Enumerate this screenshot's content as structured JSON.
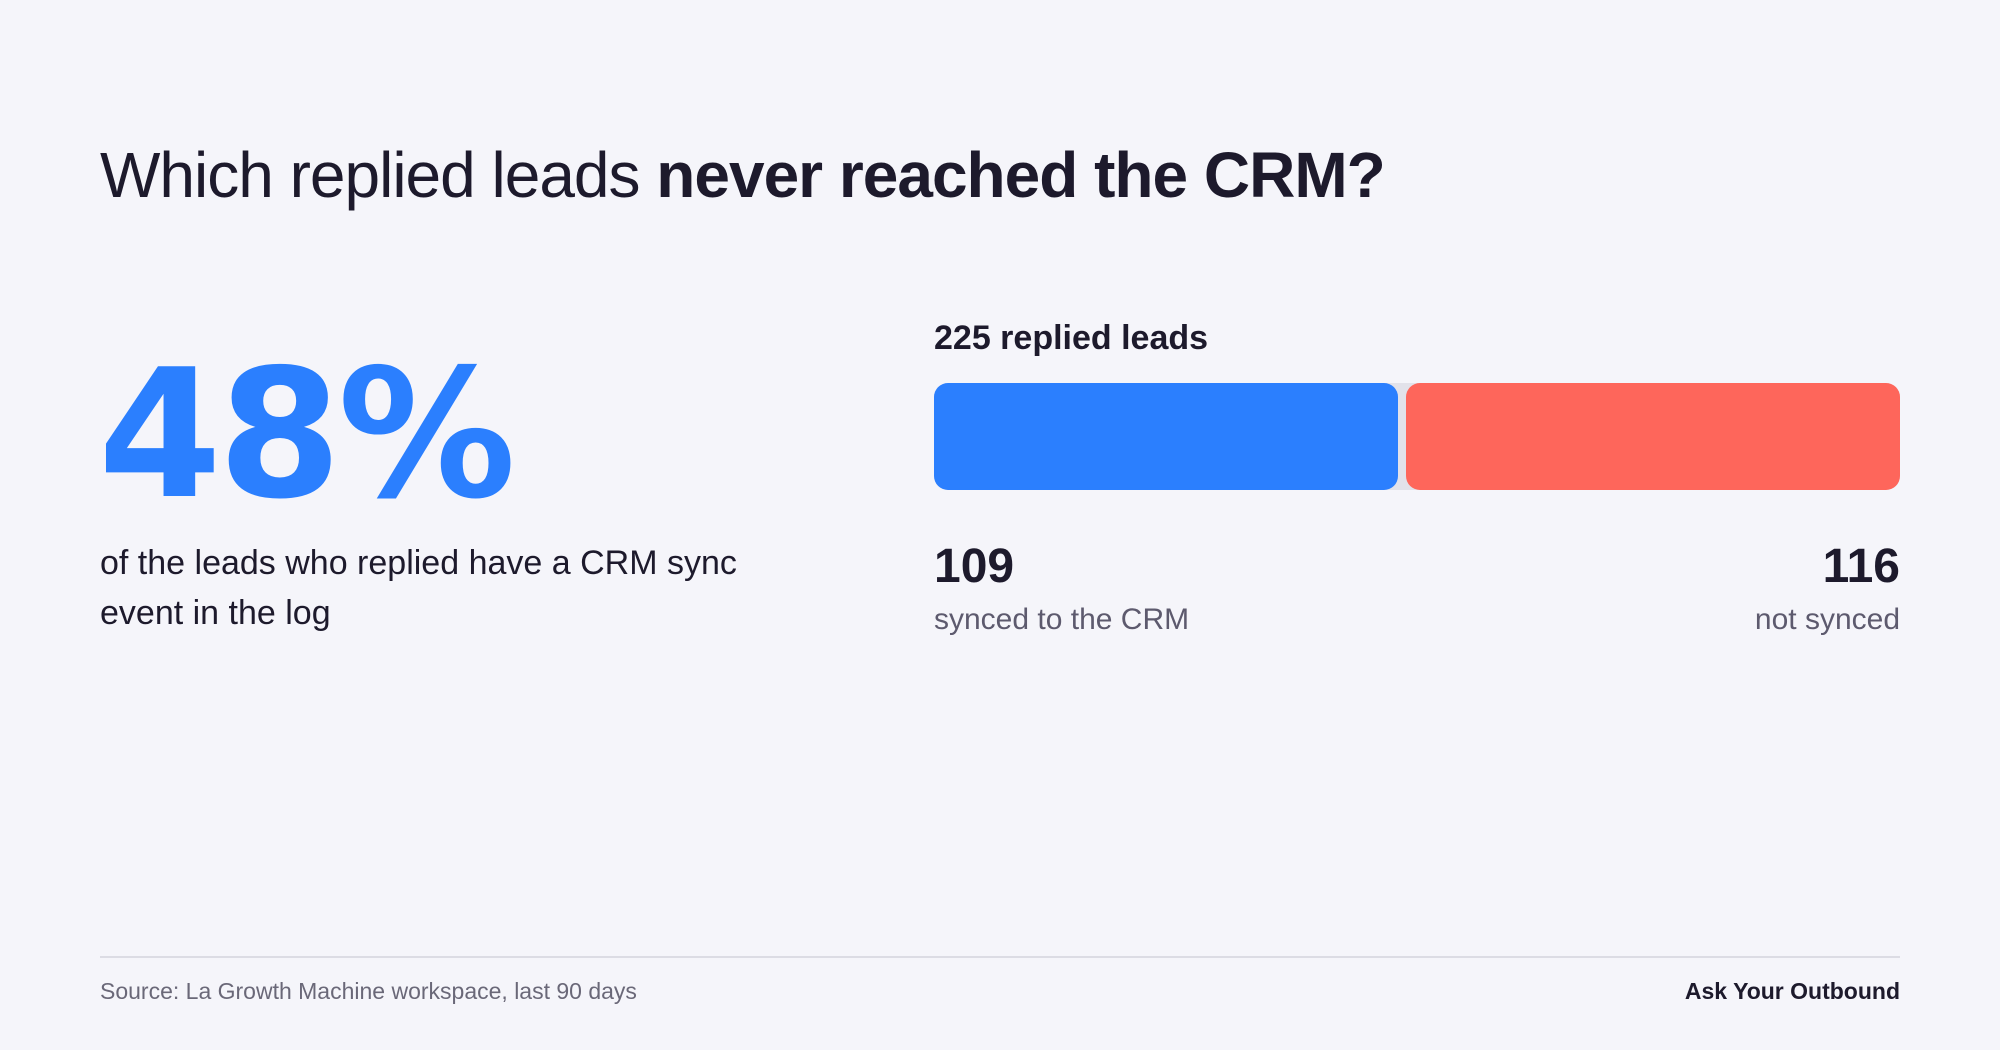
{
  "title": {
    "regular": "Which replied leads ",
    "bold": "never reached the CRM?"
  },
  "headline": {
    "percent": "48%",
    "description": "of the leads who replied have a CRM sync event in the log"
  },
  "chart_data": {
    "type": "bar",
    "title": "225 replied leads",
    "total": 225,
    "categories": [
      "synced to the CRM",
      "not synced"
    ],
    "values": [
      109,
      116
    ],
    "value_labels": [
      "109",
      "116"
    ],
    "colors": [
      "#2b7ffe",
      "#fe665b"
    ],
    "stacked": true,
    "orientation": "horizontal",
    "grid": false,
    "legend": "below"
  },
  "footer": {
    "source": "Source: La Growth Machine workspace, last 90 days",
    "brand": "Ask Your Outbound"
  }
}
